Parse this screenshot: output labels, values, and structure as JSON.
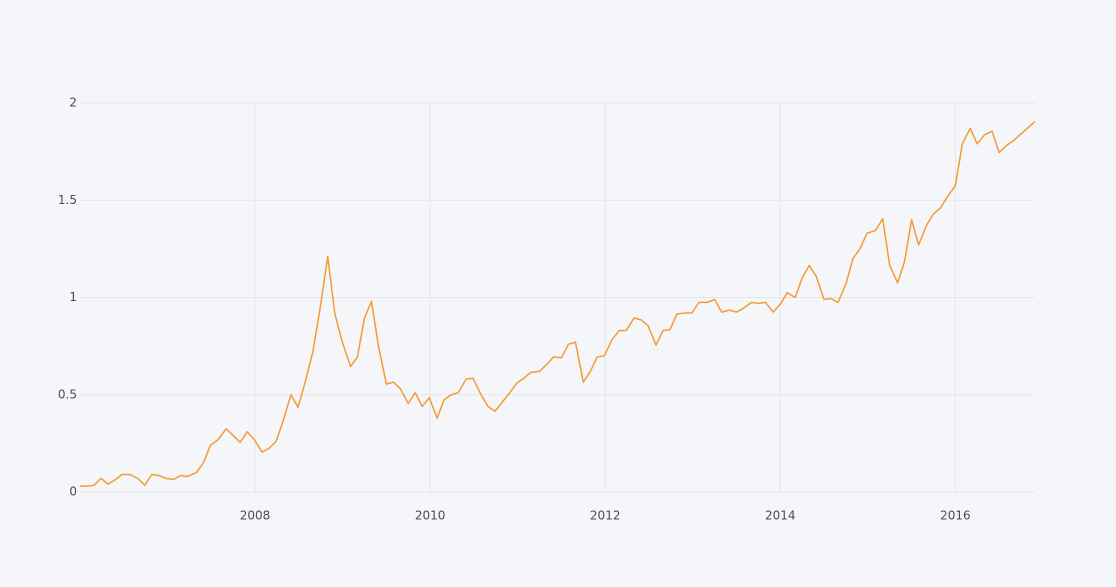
{
  "chart_data": {
    "type": "line",
    "x": [
      2006.0,
      2006.08,
      2006.16,
      2006.24,
      2006.32,
      2006.41,
      2006.48,
      2006.57,
      2006.66,
      2006.74,
      2006.82,
      2006.9,
      2006.98,
      2007.07,
      2007.15,
      2007.23,
      2007.33,
      2007.41,
      2007.49,
      2007.58,
      2007.67,
      2007.75,
      2007.83,
      2007.91,
      2007.99,
      2008.08,
      2008.16,
      2008.24,
      2008.32,
      2008.41,
      2008.49,
      2008.57,
      2008.66,
      2008.74,
      2008.83,
      2008.91,
      2008.99,
      2009.09,
      2009.17,
      2009.25,
      2009.33,
      2009.41,
      2009.5,
      2009.58,
      2009.66,
      2009.75,
      2009.83,
      2009.91,
      2009.99,
      2010.08,
      2010.16,
      2010.24,
      2010.32,
      2010.41,
      2010.49,
      2010.57,
      2010.66,
      2010.74,
      2010.82,
      2010.91,
      2010.99,
      2011.07,
      2011.15,
      2011.25,
      2011.33,
      2011.41,
      2011.5,
      2011.58,
      2011.66,
      2011.75,
      2011.83,
      2011.91,
      2011.99,
      2012.08,
      2012.16,
      2012.24,
      2012.33,
      2012.41,
      2012.49,
      2012.58,
      2012.66,
      2012.74,
      2012.82,
      2012.91,
      2012.99,
      2013.07,
      2013.17,
      2013.25,
      2013.33,
      2013.42,
      2013.5,
      2013.58,
      2013.67,
      2013.75,
      2013.83,
      2013.92,
      2014.0,
      2014.08,
      2014.17,
      2014.25,
      2014.33,
      2014.41,
      2014.5,
      2014.58,
      2014.66,
      2014.75,
      2014.83,
      2014.91,
      2014.99,
      2015.09,
      2015.17,
      2015.25,
      2015.34,
      2015.42,
      2015.5,
      2015.58,
      2015.67,
      2015.75,
      2015.83,
      2015.92,
      2016.0,
      2016.08,
      2016.17,
      2016.25,
      2016.33,
      2016.42,
      2016.5,
      2016.58,
      2016.66,
      2016.91
    ],
    "series": [
      {
        "color": "#f39c35",
        "values": [
          0.03,
          0.03,
          0.035,
          0.07,
          0.04,
          0.065,
          0.09,
          0.09,
          0.07,
          0.035,
          0.09,
          0.085,
          0.07,
          0.065,
          0.085,
          0.08,
          0.1,
          0.15,
          0.24,
          0.27,
          0.325,
          0.29,
          0.255,
          0.31,
          0.27,
          0.205,
          0.225,
          0.26,
          0.365,
          0.5,
          0.435,
          0.56,
          0.72,
          0.935,
          1.21,
          0.92,
          0.78,
          0.645,
          0.695,
          0.895,
          0.98,
          0.75,
          0.555,
          0.565,
          0.53,
          0.455,
          0.51,
          0.44,
          0.485,
          0.38,
          0.475,
          0.5,
          0.51,
          0.58,
          0.585,
          0.51,
          0.44,
          0.415,
          0.46,
          0.51,
          0.56,
          0.585,
          0.615,
          0.62,
          0.655,
          0.695,
          0.69,
          0.76,
          0.77,
          0.565,
          0.62,
          0.695,
          0.7,
          0.785,
          0.83,
          0.83,
          0.895,
          0.885,
          0.855,
          0.755,
          0.83,
          0.835,
          0.915,
          0.92,
          0.92,
          0.975,
          0.975,
          0.99,
          0.925,
          0.935,
          0.925,
          0.945,
          0.975,
          0.97,
          0.975,
          0.925,
          0.965,
          1.025,
          1.0,
          1.1,
          1.165,
          1.11,
          0.99,
          0.995,
          0.975,
          1.07,
          1.2,
          1.25,
          1.33,
          1.345,
          1.405,
          1.165,
          1.075,
          1.185,
          1.4,
          1.27,
          1.37,
          1.43,
          1.46,
          1.525,
          1.575,
          1.79,
          1.87,
          1.79,
          1.835,
          1.855,
          1.745,
          1.78,
          1.805,
          1.905
        ]
      }
    ],
    "xlim": [
      2006.0,
      2016.91
    ],
    "xticks": [
      2008,
      2010,
      2012,
      2014,
      2016
    ],
    "ylim": [
      0,
      2
    ],
    "yticks": [
      0,
      0.5,
      1,
      1.5,
      2
    ],
    "grid": true
  }
}
